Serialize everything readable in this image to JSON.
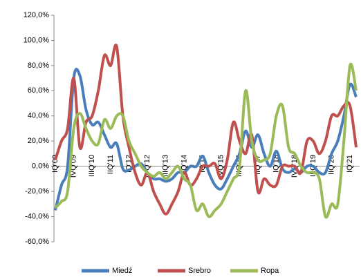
{
  "chart_data": {
    "type": "line",
    "categories": [
      "IQ'09",
      null,
      null,
      "IVQ'09",
      null,
      null,
      "IIIQ'10",
      null,
      null,
      "IIQ'11",
      null,
      null,
      "IQ'12",
      null,
      null,
      "IVQ'12",
      null,
      null,
      "IIIQ'13",
      null,
      null,
      "IIQ'14",
      null,
      null,
      "IQ'15",
      null,
      null,
      "IVQ'15",
      null,
      null,
      "IIIQ'16",
      null,
      null,
      "IIQ'17",
      null,
      null,
      "IQ'18",
      null,
      null,
      "IVQ'18",
      null,
      null,
      "IIIQ'19",
      null,
      null,
      "IIQ'20",
      null,
      null,
      "IQ'21",
      null
    ],
    "series": [
      {
        "name": "Miedź",
        "color": "#4a7ebb",
        "values": [
          -35,
          -15,
          0,
          70,
          72,
          45,
          33,
          35,
          25,
          15,
          18,
          -2,
          -3,
          0,
          2,
          -5,
          -10,
          -10,
          -12,
          -10,
          -5,
          -5,
          0,
          0,
          8,
          -5,
          -15,
          -18,
          -10,
          0,
          10,
          28,
          15,
          25,
          10,
          0,
          12,
          -2,
          -5,
          -2,
          -5,
          0,
          0,
          -5,
          -5,
          10,
          20,
          40,
          65,
          55
        ]
      },
      {
        "name": "Srebro",
        "color": "#c0504d",
        "values": [
          5,
          20,
          30,
          70,
          15,
          35,
          40,
          60,
          88,
          80,
          95,
          40,
          15,
          -5,
          -15,
          -5,
          -20,
          -30,
          -38,
          -30,
          -20,
          -5,
          -15,
          -10,
          0,
          0,
          2,
          -10,
          5,
          35,
          20,
          10,
          25,
          -20,
          -10,
          -15,
          -15,
          0,
          0,
          0,
          -5,
          20,
          20,
          10,
          20,
          40,
          40,
          48,
          48,
          15
        ]
      },
      {
        "name": "Ropa",
        "color": "#9bbb59",
        "values": [
          -33,
          -28,
          -20,
          30,
          42,
          30,
          20,
          18,
          37,
          30,
          40,
          40,
          20,
          10,
          0,
          -5,
          -8,
          -5,
          -10,
          -5,
          0,
          -10,
          -15,
          -35,
          -30,
          -40,
          -35,
          -30,
          -20,
          -10,
          0,
          60,
          20,
          5,
          5,
          10,
          40,
          48,
          15,
          10,
          0,
          -5,
          -5,
          -10,
          -40,
          -30,
          -30,
          20,
          80,
          60
        ]
      }
    ],
    "ylim": [
      -60,
      120
    ],
    "yticks": [
      {
        "value": -60,
        "label": "-60,0%"
      },
      {
        "value": -40,
        "label": "-40,0%"
      },
      {
        "value": -20,
        "label": "-20,0%"
      },
      {
        "value": 0,
        "label": "0,0%"
      },
      {
        "value": 20,
        "label": "20,0%"
      },
      {
        "value": 40,
        "label": "40,0%"
      },
      {
        "value": 60,
        "label": "60,0%"
      },
      {
        "value": 80,
        "label": "80,0%"
      },
      {
        "value": 100,
        "label": "100,0%"
      },
      {
        "value": 120,
        "label": "120,0%"
      }
    ],
    "grid": false
  }
}
